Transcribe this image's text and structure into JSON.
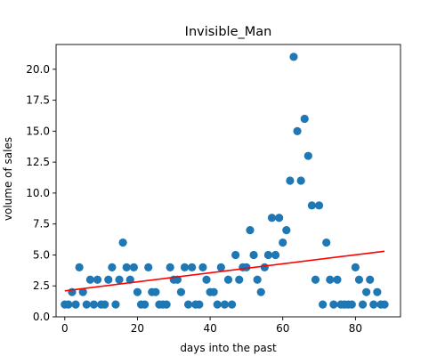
{
  "chart_data": {
    "type": "scatter",
    "title": "Invisible_Man",
    "xlabel": "days into the past",
    "ylabel": "volume of sales",
    "xlim": [
      -2.4,
      92.4
    ],
    "ylim": [
      0,
      22
    ],
    "xticks": [
      0,
      20,
      40,
      60,
      80
    ],
    "yticks": [
      0.0,
      2.5,
      5.0,
      7.5,
      10.0,
      12.5,
      15.0,
      17.5,
      20.0
    ],
    "ytick_labels": [
      "0.0",
      "2.5",
      "5.0",
      "7.5",
      "10.0",
      "12.5",
      "15.0",
      "17.5",
      "20.0"
    ],
    "grid": false,
    "point_color": "#1f77b4",
    "trend_color": "#ff0000",
    "points": [
      [
        0,
        1
      ],
      [
        1,
        1
      ],
      [
        2,
        2
      ],
      [
        3,
        1
      ],
      [
        4,
        4
      ],
      [
        5,
        2
      ],
      [
        6,
        1
      ],
      [
        7,
        3
      ],
      [
        8,
        1
      ],
      [
        9,
        3
      ],
      [
        10,
        1
      ],
      [
        11,
        1
      ],
      [
        12,
        3
      ],
      [
        13,
        4
      ],
      [
        14,
        1
      ],
      [
        15,
        3
      ],
      [
        16,
        6
      ],
      [
        17,
        4
      ],
      [
        18,
        3
      ],
      [
        19,
        4
      ],
      [
        20,
        2
      ],
      [
        21,
        1
      ],
      [
        22,
        1
      ],
      [
        23,
        4
      ],
      [
        24,
        2
      ],
      [
        25,
        2
      ],
      [
        26,
        1
      ],
      [
        27,
        1
      ],
      [
        28,
        1
      ],
      [
        29,
        4
      ],
      [
        30,
        3
      ],
      [
        31,
        3
      ],
      [
        32,
        2
      ],
      [
        33,
        4
      ],
      [
        34,
        1
      ],
      [
        35,
        4
      ],
      [
        36,
        1
      ],
      [
        37,
        1
      ],
      [
        38,
        4
      ],
      [
        39,
        3
      ],
      [
        40,
        2
      ],
      [
        41,
        2
      ],
      [
        42,
        1
      ],
      [
        43,
        4
      ],
      [
        44,
        1
      ],
      [
        45,
        3
      ],
      [
        46,
        1
      ],
      [
        47,
        5
      ],
      [
        48,
        3
      ],
      [
        49,
        4
      ],
      [
        50,
        4
      ],
      [
        51,
        7
      ],
      [
        52,
        5
      ],
      [
        53,
        3
      ],
      [
        54,
        2
      ],
      [
        55,
        4
      ],
      [
        56,
        5
      ],
      [
        57,
        8
      ],
      [
        58,
        5
      ],
      [
        59,
        8
      ],
      [
        60,
        6
      ],
      [
        61,
        7
      ],
      [
        62,
        11
      ],
      [
        63,
        21
      ],
      [
        64,
        15
      ],
      [
        65,
        11
      ],
      [
        66,
        16
      ],
      [
        67,
        13
      ],
      [
        68,
        9
      ],
      [
        69,
        3
      ],
      [
        70,
        9
      ],
      [
        71,
        1
      ],
      [
        72,
        6
      ],
      [
        73,
        3
      ],
      [
        74,
        1
      ],
      [
        75,
        3
      ],
      [
        76,
        1
      ],
      [
        77,
        1
      ],
      [
        78,
        1
      ],
      [
        79,
        1
      ],
      [
        80,
        4
      ],
      [
        81,
        3
      ],
      [
        82,
        1
      ],
      [
        83,
        2
      ],
      [
        84,
        3
      ],
      [
        85,
        1
      ],
      [
        86,
        2
      ],
      [
        87,
        1
      ],
      [
        88,
        1
      ]
    ],
    "trendline": {
      "x": [
        0,
        88
      ],
      "y": [
        2.1,
        5.3
      ]
    }
  }
}
